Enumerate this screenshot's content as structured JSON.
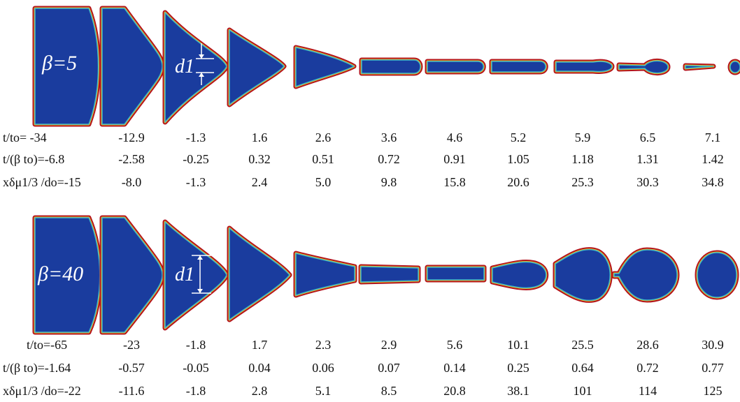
{
  "panels": [
    {
      "beta_label": "β=5",
      "d_label": "d1",
      "rows": [
        {
          "label": "t/to= -34",
          "values": [
            "-12.9",
            "-1.3",
            "1.6",
            "2.6",
            "3.6",
            "4.6",
            "5.2",
            "5.9",
            "6.5",
            "7.1"
          ]
        },
        {
          "label": "t/(β to)=-6.8",
          "values": [
            "-2.58",
            "-0.25",
            "0.32",
            "0.51",
            "0.72",
            "0.91",
            "1.05",
            "1.18",
            "1.31",
            "1.42"
          ]
        },
        {
          "label": "xδμ1/3 /do=-15",
          "values": [
            "-8.0",
            "-1.3",
            "2.4",
            "5.0",
            "9.8",
            "15.8",
            "20.6",
            "25.3",
            "30.3",
            "34.8"
          ]
        }
      ]
    },
    {
      "beta_label": "β=40",
      "d_label": "d1",
      "rows": [
        {
          "label": "t/to=-65",
          "values": [
            "-23",
            "-1.8",
            "1.7",
            "2.3",
            "2.9",
            "5.6",
            "10.1",
            "25.5",
            "28.6",
            "30.9"
          ]
        },
        {
          "label": "t/(β to)=-1.64",
          "values": [
            "-0.57",
            "-0.05",
            "0.04",
            "0.06",
            "0.07",
            "0.14",
            "0.25",
            "0.64",
            "0.72",
            "0.77"
          ]
        },
        {
          "label": "xδμ1/3 /do=-22",
          "values": [
            "-11.6",
            "-1.8",
            "2.8",
            "5.1",
            "8.5",
            "20.8",
            "38.1",
            "101",
            "114",
            "125"
          ]
        }
      ]
    }
  ],
  "colors": {
    "fluid": "#1a3c9e",
    "rim_outer": "#b2141e",
    "rim_mid": "#f2c21a",
    "rim_inner": "#3fb6c8"
  }
}
